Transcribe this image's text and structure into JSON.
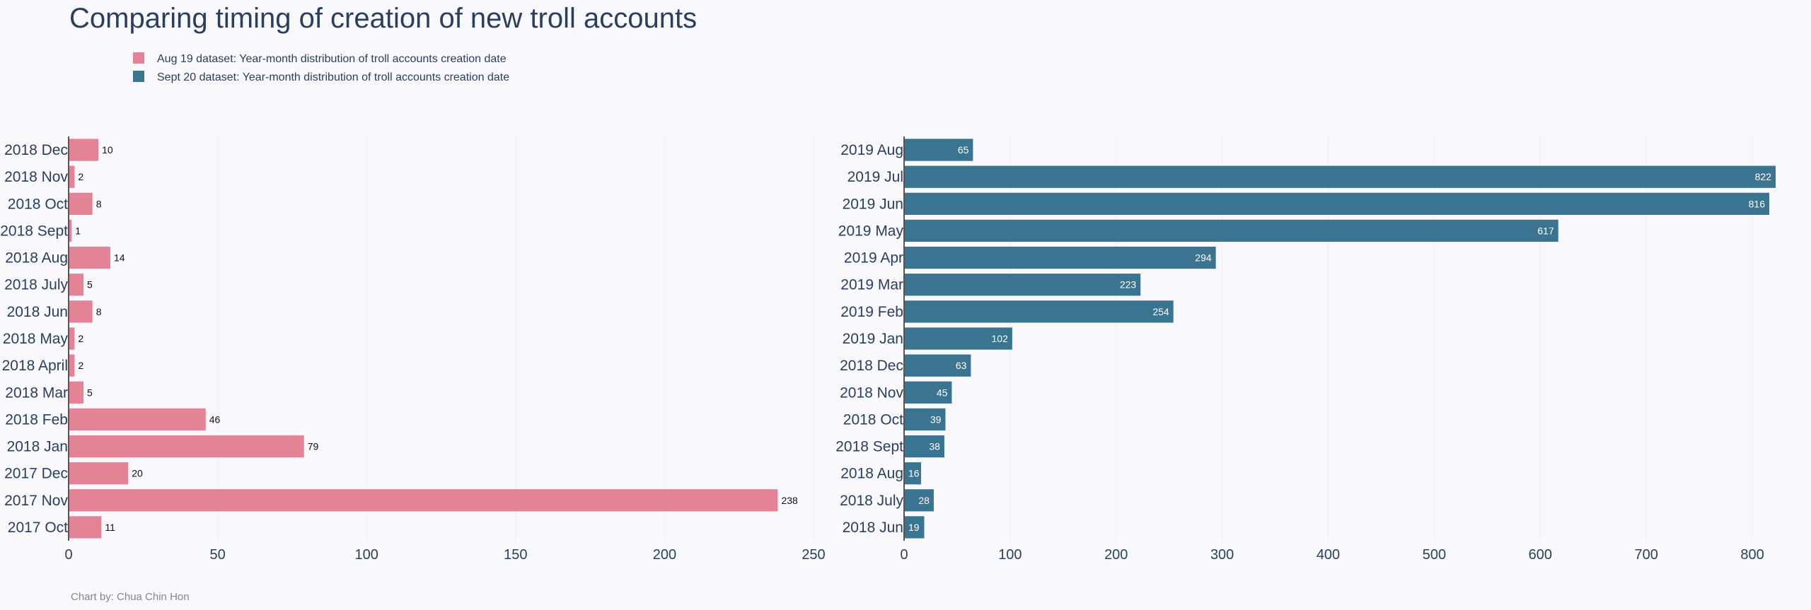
{
  "title": "Comparing timing of creation of new troll accounts",
  "legend": [
    {
      "label": "Aug 19 dataset: Year-month distribution of troll accounts creation date",
      "color": "#e48395"
    },
    {
      "label": "Sept 20 dataset: Year-month distribution of troll accounts creation date",
      "color": "#3b7490"
    }
  ],
  "footer": "Chart by: Chua Chin Hon",
  "colors": {
    "background": "#f8f8fd",
    "grid": "#eeeef5",
    "text": "#2a3f5f",
    "axis_line": "#555555"
  },
  "chart_data": [
    {
      "type": "bar",
      "orientation": "horizontal",
      "series_name": "Aug 19 dataset: Year-month distribution of troll accounts creation date",
      "categories": [
        "2018 Dec",
        "2018 Nov",
        "2018 Oct",
        "2018 Sept",
        "2018 Aug",
        "2018 July",
        "2018 Jun",
        "2018 May",
        "2018 April",
        "2018 Mar",
        "2018 Feb",
        "2018 Jan",
        "2017 Dec",
        "2017 Nov",
        "2017 Oct"
      ],
      "values": [
        10,
        2,
        8,
        1,
        14,
        5,
        8,
        2,
        2,
        5,
        46,
        79,
        20,
        238,
        11
      ],
      "xlim": [
        0,
        250
      ],
      "xticks": [
        0,
        50,
        100,
        150,
        200,
        250
      ],
      "label_position": "outside",
      "color": "#e48395"
    },
    {
      "type": "bar",
      "orientation": "horizontal",
      "series_name": "Sept 20 dataset: Year-month distribution of troll accounts creation date",
      "categories": [
        "2019 Aug",
        "2019 Jul",
        "2019 Jun",
        "2019 May",
        "2019 Apr",
        "2019 Mar",
        "2019 Feb",
        "2019 Jan",
        "2018 Dec",
        "2018 Nov",
        "2018 Oct",
        "2018 Sept",
        "2018 Aug",
        "2018 July",
        "2018 Jun"
      ],
      "values": [
        65,
        822,
        816,
        617,
        294,
        223,
        254,
        102,
        63,
        45,
        39,
        38,
        16,
        28,
        19
      ],
      "xlim": [
        0,
        822
      ],
      "xticks": [
        0,
        100,
        200,
        300,
        400,
        500,
        600,
        700,
        800
      ],
      "label_position": "inside",
      "color": "#3b7490"
    }
  ]
}
